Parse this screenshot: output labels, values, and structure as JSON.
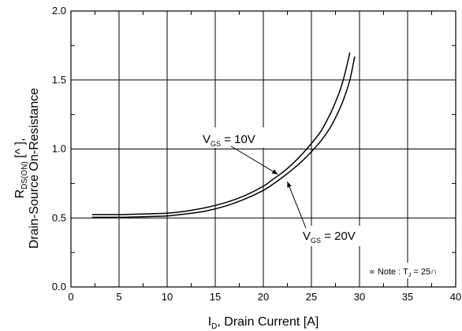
{
  "chart_data": {
    "type": "line",
    "xlim": [
      0,
      40
    ],
    "ylim": [
      0.0,
      2.0
    ],
    "grid": true,
    "x_ticks": [
      "0",
      "5",
      "10",
      "15",
      "20",
      "25",
      "30",
      "35",
      "40"
    ],
    "y_ticks": [
      "0.0",
      "0.5",
      "1.0",
      "1.5",
      "2.0"
    ],
    "xlabel": {
      "main": "I",
      "sub": "D",
      "rest": ", Drain Current [A]"
    },
    "ylabel": {
      "line1_main": "R",
      "line1_sub": "DS(ON)",
      "line1_rest": " [^ ],",
      "line2": "Drain-Source On-Resistance"
    },
    "series": [
      {
        "name": "VGS = 10V",
        "x": [
          2.2,
          5,
          8,
          10,
          12,
          14,
          16,
          18,
          20,
          21,
          22,
          23,
          24,
          25,
          26,
          27,
          27.5,
          28,
          28.5,
          29
        ],
        "y": [
          0.525,
          0.525,
          0.53,
          0.535,
          0.55,
          0.575,
          0.61,
          0.66,
          0.73,
          0.78,
          0.83,
          0.89,
          0.96,
          1.04,
          1.13,
          1.26,
          1.34,
          1.43,
          1.55,
          1.7
        ]
      },
      {
        "name": "VGS = 20V",
        "x": [
          2.2,
          5,
          8,
          10,
          12,
          14,
          16,
          18,
          20,
          21,
          22,
          23,
          24,
          25,
          26,
          27,
          28,
          28.5,
          29,
          29.5
        ],
        "y": [
          0.505,
          0.505,
          0.51,
          0.515,
          0.53,
          0.55,
          0.585,
          0.635,
          0.7,
          0.745,
          0.795,
          0.85,
          0.91,
          0.98,
          1.06,
          1.16,
          1.3,
          1.39,
          1.5,
          1.67
        ]
      }
    ],
    "annotations": [
      {
        "label_main": "V",
        "label_sub": "GS",
        "label_rest": " = 10V",
        "arrow_to": [
          21.5,
          0.8
        ]
      },
      {
        "label_main": "V",
        "label_sub": "GS",
        "label_rest": " = 20V",
        "arrow_to": [
          22.5,
          0.78
        ]
      }
    ],
    "note": {
      "symbol": "∝",
      "text": " Note : T",
      "sub": "J",
      "rest": " = 25∩"
    }
  }
}
